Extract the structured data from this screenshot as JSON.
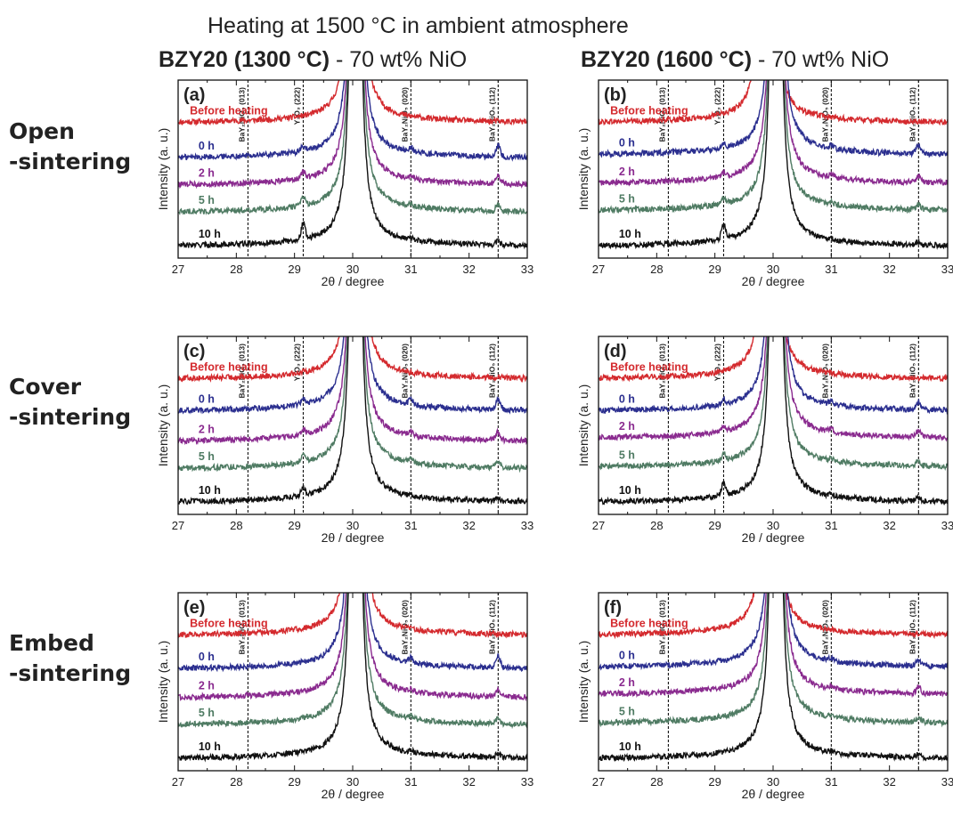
{
  "figure_title": "Heating at 1500 °C in ambient atmosphere",
  "column_titles": [
    {
      "bold": "BZY20 (1300 °C)",
      "rest": " - 70 wt% NiO"
    },
    {
      "bold": "BZY20 (1600 °C)",
      "rest": " - 70 wt% NiO"
    }
  ],
  "row_labels": [
    {
      "line1": "Open",
      "line2": "-sintering"
    },
    {
      "line1": "Cover",
      "line2": "-sintering"
    },
    {
      "line1": "Embed",
      "line2": "-sintering"
    }
  ],
  "chart_data": [
    {
      "type": "line",
      "panel_label": "(a)",
      "column": 0,
      "row": 0,
      "xlabel": "2θ / degree",
      "ylabel": "Intensity (a. u.)",
      "xlim": [
        27,
        33
      ],
      "xticks": [
        "27",
        "28",
        "29",
        "30",
        "31",
        "32",
        "33"
      ],
      "reference_lines": [
        {
          "x": 28.2,
          "label": "BaY₂NiO₅ (013)"
        },
        {
          "x": 29.15,
          "label": "Y₂O₃ (222)"
        },
        {
          "x": 31.0,
          "label": "BaY₂NiO₅ (020)"
        },
        {
          "x": 32.5,
          "label": "BaY₂NiO₅ (112)"
        }
      ],
      "series": [
        {
          "name": "Before heating",
          "color": "#d42a2e",
          "baseline": 0.82,
          "peak_x": 30.05,
          "y2o3_peak": 0.0,
          "bayn_peak": 0.0
        },
        {
          "name": "0 h",
          "color": "#2b2f8f",
          "baseline": 0.6,
          "peak_x": 30.05,
          "y2o3_peak": 0.03,
          "bayn_peak": 0.07
        },
        {
          "name": "2 h",
          "color": "#8a2b8f",
          "baseline": 0.43,
          "peak_x": 30.05,
          "y2o3_peak": 0.04,
          "bayn_peak": 0.05
        },
        {
          "name": "5 h",
          "color": "#4f7b63",
          "baseline": 0.26,
          "peak_x": 30.05,
          "y2o3_peak": 0.05,
          "bayn_peak": 0.04
        },
        {
          "name": "10 h",
          "color": "#111111",
          "baseline": 0.05,
          "peak_x": 30.05,
          "y2o3_peak": 0.1,
          "bayn_peak": 0.02
        }
      ]
    },
    {
      "type": "line",
      "panel_label": "(b)",
      "column": 1,
      "row": 0,
      "xlabel": "2θ / degree",
      "ylabel": "Intensity (a. u.)",
      "xlim": [
        27,
        33
      ],
      "xticks": [
        "27",
        "28",
        "29",
        "30",
        "31",
        "32",
        "33"
      ],
      "reference_lines": [
        {
          "x": 28.2,
          "label": "BaY₂NiO₅ (013)"
        },
        {
          "x": 29.15,
          "label": "Y₂O₃ (222)"
        },
        {
          "x": 31.0,
          "label": "BaY₂NiO₅ (020)"
        },
        {
          "x": 32.5,
          "label": "BaY₂NiO₅ (112)"
        }
      ],
      "series": [
        {
          "name": "Before heating",
          "color": "#d42a2e",
          "baseline": 0.82,
          "peak_x": 29.9,
          "y2o3_peak": 0.0,
          "bayn_peak": 0.0
        },
        {
          "name": "0 h",
          "color": "#2b2f8f",
          "baseline": 0.62,
          "peak_x": 30.05,
          "y2o3_peak": 0.03,
          "bayn_peak": 0.05
        },
        {
          "name": "2 h",
          "color": "#8a2b8f",
          "baseline": 0.44,
          "peak_x": 30.05,
          "y2o3_peak": 0.03,
          "bayn_peak": 0.04
        },
        {
          "name": "5 h",
          "color": "#4f7b63",
          "baseline": 0.27,
          "peak_x": 30.05,
          "y2o3_peak": 0.04,
          "bayn_peak": 0.03
        },
        {
          "name": "10 h",
          "color": "#111111",
          "baseline": 0.05,
          "peak_x": 30.05,
          "y2o3_peak": 0.09,
          "bayn_peak": 0.02
        }
      ]
    },
    {
      "type": "line",
      "panel_label": "(c)",
      "column": 0,
      "row": 1,
      "xlabel": "2θ / degree",
      "ylabel": "Intensity (a. u.)",
      "xlim": [
        27,
        33
      ],
      "xticks": [
        "27",
        "28",
        "29",
        "30",
        "31",
        "32",
        "33"
      ],
      "reference_lines": [
        {
          "x": 28.2,
          "label": "BaY₂NiO₅ (013)"
        },
        {
          "x": 29.15,
          "label": "Y₂O₃ (222)"
        },
        {
          "x": 31.0,
          "label": "BaY₂NiO₅ (020)"
        },
        {
          "x": 32.5,
          "label": "BaY₂NiO₅ (112)"
        }
      ],
      "series": [
        {
          "name": "Before heating",
          "color": "#d42a2e",
          "baseline": 0.82,
          "peak_x": 30.05,
          "y2o3_peak": 0.0,
          "bayn_peak": 0.0
        },
        {
          "name": "0 h",
          "color": "#2b2f8f",
          "baseline": 0.62,
          "peak_x": 30.05,
          "y2o3_peak": 0.03,
          "bayn_peak": 0.07
        },
        {
          "name": "2 h",
          "color": "#8a2b8f",
          "baseline": 0.43,
          "peak_x": 30.05,
          "y2o3_peak": 0.03,
          "bayn_peak": 0.05
        },
        {
          "name": "5 h",
          "color": "#4f7b63",
          "baseline": 0.26,
          "peak_x": 30.05,
          "y2o3_peak": 0.04,
          "bayn_peak": 0.04
        },
        {
          "name": "10 h",
          "color": "#111111",
          "baseline": 0.05,
          "peak_x": 30.05,
          "y2o3_peak": 0.05,
          "bayn_peak": 0.02
        }
      ]
    },
    {
      "type": "line",
      "panel_label": "(d)",
      "column": 1,
      "row": 1,
      "xlabel": "2θ / degree",
      "ylabel": "Intensity (a. u.)",
      "xlim": [
        27,
        33
      ],
      "xticks": [
        "27",
        "28",
        "29",
        "30",
        "31",
        "32",
        "33"
      ],
      "reference_lines": [
        {
          "x": 28.2,
          "label": "BaY₂NiO₅ (013)"
        },
        {
          "x": 29.15,
          "label": "Y₂O₃ (222)"
        },
        {
          "x": 31.0,
          "label": "BaY₂NiO₅ (020)"
        },
        {
          "x": 32.5,
          "label": "BaY₂NiO₅ (112)"
        }
      ],
      "series": [
        {
          "name": "Before heating",
          "color": "#d42a2e",
          "baseline": 0.82,
          "peak_x": 29.95,
          "y2o3_peak": 0.0,
          "bayn_peak": 0.0
        },
        {
          "name": "0 h",
          "color": "#2b2f8f",
          "baseline": 0.62,
          "peak_x": 30.05,
          "y2o3_peak": 0.03,
          "bayn_peak": 0.05
        },
        {
          "name": "2 h",
          "color": "#8a2b8f",
          "baseline": 0.45,
          "peak_x": 30.05,
          "y2o3_peak": 0.03,
          "bayn_peak": 0.04
        },
        {
          "name": "5 h",
          "color": "#4f7b63",
          "baseline": 0.27,
          "peak_x": 30.05,
          "y2o3_peak": 0.04,
          "bayn_peak": 0.03
        },
        {
          "name": "10 h",
          "color": "#111111",
          "baseline": 0.05,
          "peak_x": 30.05,
          "y2o3_peak": 0.08,
          "bayn_peak": 0.02
        }
      ]
    },
    {
      "type": "line",
      "panel_label": "(e)",
      "column": 0,
      "row": 2,
      "xlabel": "2θ / degree",
      "ylabel": "Intensity (a. u.)",
      "xlim": [
        27,
        33
      ],
      "xticks": [
        "27",
        "28",
        "29",
        "30",
        "31",
        "32",
        "33"
      ],
      "reference_lines": [
        {
          "x": 28.2,
          "label": "BaY₂NiO₅ (013)"
        },
        {
          "x": 31.0,
          "label": "BaY₂NiO₅ (020)"
        },
        {
          "x": 32.5,
          "label": "BaY₂NiO₅ (112)"
        }
      ],
      "series": [
        {
          "name": "Before heating",
          "color": "#d42a2e",
          "baseline": 0.82,
          "peak_x": 30.05,
          "y2o3_peak": 0.0,
          "bayn_peak": 0.0
        },
        {
          "name": "0 h",
          "color": "#2b2f8f",
          "baseline": 0.61,
          "peak_x": 30.05,
          "y2o3_peak": 0.0,
          "bayn_peak": 0.07
        },
        {
          "name": "2 h",
          "color": "#8a2b8f",
          "baseline": 0.43,
          "peak_x": 30.05,
          "y2o3_peak": 0.0,
          "bayn_peak": 0.04
        },
        {
          "name": "5 h",
          "color": "#4f7b63",
          "baseline": 0.26,
          "peak_x": 30.05,
          "y2o3_peak": 0.0,
          "bayn_peak": 0.03
        },
        {
          "name": "10 h",
          "color": "#111111",
          "baseline": 0.05,
          "peak_x": 30.05,
          "y2o3_peak": 0.0,
          "bayn_peak": 0.02
        }
      ]
    },
    {
      "type": "line",
      "panel_label": "(f)",
      "column": 1,
      "row": 2,
      "xlabel": "2θ / degree",
      "ylabel": "Intensity (a. u.)",
      "xlim": [
        27,
        33
      ],
      "xticks": [
        "27",
        "28",
        "29",
        "30",
        "31",
        "32",
        "33"
      ],
      "reference_lines": [
        {
          "x": 28.2,
          "label": "BaY₂NiO₅ (013)"
        },
        {
          "x": 31.0,
          "label": "BaY₂NiO₅ (020)"
        },
        {
          "x": 32.5,
          "label": "BaY₂NiO₅ (112)"
        }
      ],
      "series": [
        {
          "name": "Before heating",
          "color": "#d42a2e",
          "baseline": 0.82,
          "peak_x": 29.95,
          "y2o3_peak": 0.0,
          "bayn_peak": 0.0
        },
        {
          "name": "0 h",
          "color": "#2b2f8f",
          "baseline": 0.62,
          "peak_x": 30.05,
          "y2o3_peak": 0.0,
          "bayn_peak": 0.04
        },
        {
          "name": "2 h",
          "color": "#8a2b8f",
          "baseline": 0.45,
          "peak_x": 30.05,
          "y2o3_peak": 0.0,
          "bayn_peak": 0.04
        },
        {
          "name": "5 h",
          "color": "#4f7b63",
          "baseline": 0.27,
          "peak_x": 30.05,
          "y2o3_peak": 0.0,
          "bayn_peak": 0.03
        },
        {
          "name": "10 h",
          "color": "#111111",
          "baseline": 0.05,
          "peak_x": 30.05,
          "y2o3_peak": 0.0,
          "bayn_peak": 0.02
        }
      ]
    }
  ]
}
